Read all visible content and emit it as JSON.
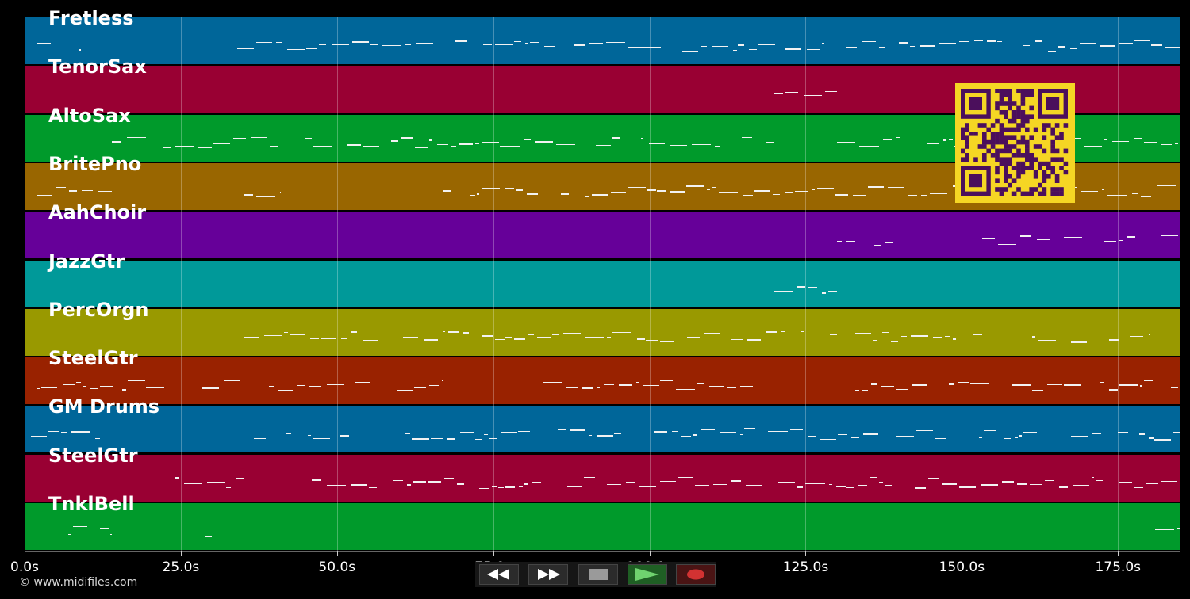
{
  "tracks": [
    {
      "name": "Fretless",
      "color": "#006699"
    },
    {
      "name": "TenorSax",
      "color": "#990033"
    },
    {
      "name": "AltoSax",
      "color": "#009a2b"
    },
    {
      "name": "BritePno",
      "color": "#996600"
    },
    {
      "name": "AahChoir",
      "color": "#660099"
    },
    {
      "name": "JazzGtr",
      "color": "#009999"
    },
    {
      "name": "PercOrgn",
      "color": "#999900"
    },
    {
      "name": "SteelGtr",
      "color": "#992200"
    },
    {
      "name": "GM Drums",
      "color": "#006699"
    },
    {
      "name": "SteelGtr",
      "color": "#990033"
    },
    {
      "name": "TnklBell",
      "color": "#009a2b"
    }
  ],
  "timeline": {
    "unit": "s",
    "max_seconds": 185,
    "ticks": [
      "0.0s",
      "25.0s",
      "50.0s",
      "75.0s",
      "100.0s",
      "125.0s",
      "150.0s",
      "175.0s"
    ]
  },
  "copyright": "© www.midifiles.com",
  "transport": {
    "rewind": "rewind-icon",
    "fast_forward": "fast-forward-icon",
    "stop": "stop-icon",
    "play": "play-icon",
    "record": "record-icon"
  },
  "qr_color": "#f5d624"
}
